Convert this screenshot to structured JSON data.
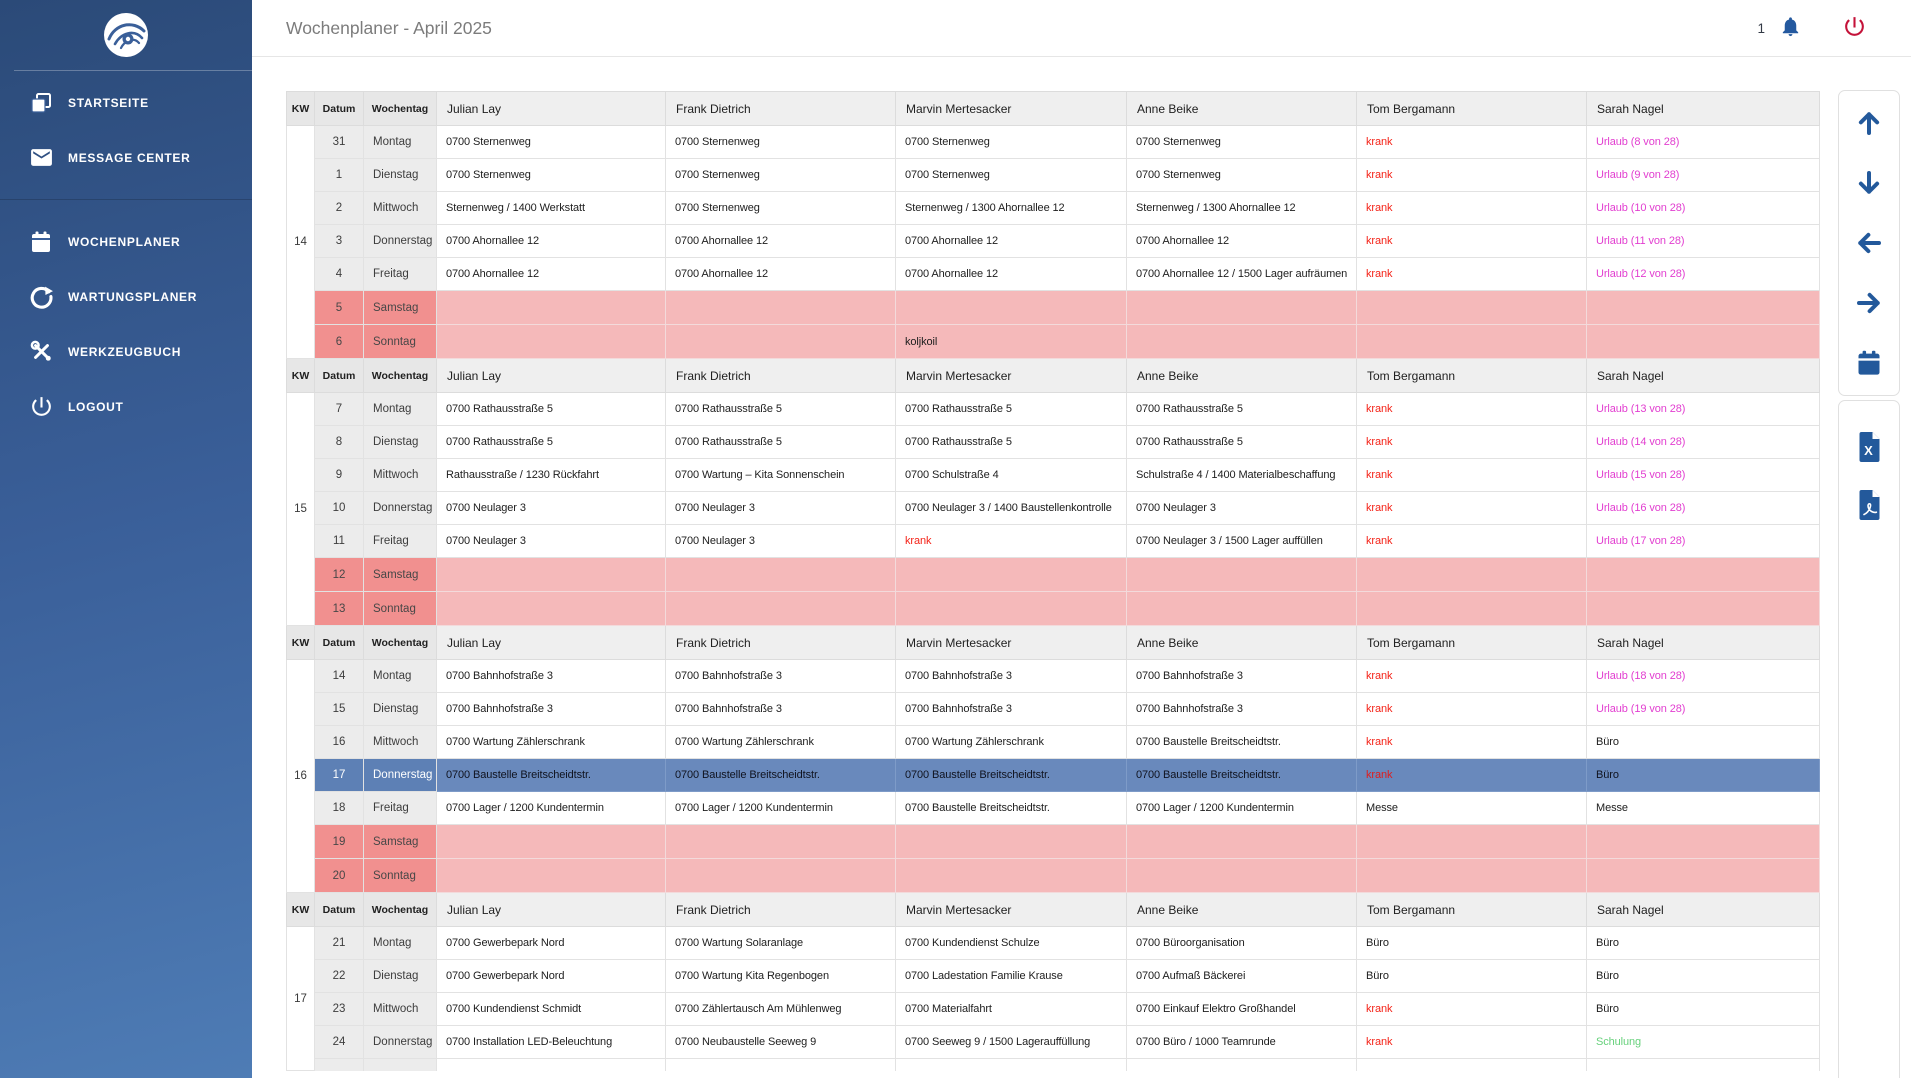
{
  "sidebar": {
    "logo": "swirl-logo",
    "items": [
      {
        "label": "STARTSEITE",
        "icon": "copy-icon"
      },
      {
        "label": "MESSAGE CENTER",
        "icon": "mail-icon"
      },
      {
        "label": "WOCHENPLANER",
        "icon": "calendar-icon"
      },
      {
        "label": "WARTUNGSPLANER",
        "icon": "refresh-icon"
      },
      {
        "label": "WERKZEUGBUCH",
        "icon": "tools-icon"
      },
      {
        "label": "LOGOUT",
        "icon": "power-icon"
      }
    ]
  },
  "header": {
    "title": "Wochenplaner - April 2025",
    "notification_count": "1"
  },
  "toolbar": {
    "buttons": [
      "arrow-up",
      "arrow-down",
      "arrow-left",
      "arrow-right",
      "calendar"
    ],
    "export_buttons": [
      "excel-export",
      "pdf-export"
    ]
  },
  "colors": {
    "sick": "#f42318",
    "vacation": "#e23ed0",
    "training": "#67d17c",
    "weekend_day_cell": "#f1908f",
    "weekend_cell": "#f5b9ba",
    "selected_day_cell": "#5d80b5",
    "selected_cell": "#6989bc",
    "toolbar_blue": "#23599b",
    "logout_red": "#c41239",
    "sidebar_top": "#2b4a78",
    "sidebar_bottom": "#4e7cb5"
  },
  "table": {
    "headers": [
      "KW",
      "Datum",
      "Wochentag",
      "Julian Lay",
      "Frank Dietrich",
      "Marvin Mertesacker",
      "Anne Beike",
      "Tom Bergamann",
      "Sarah Nagel"
    ],
    "weeks": [
      {
        "kw": "14",
        "rows": [
          {
            "date": "31",
            "day": "Montag",
            "cells": [
              "0700 Sternenweg",
              "0700 Sternenweg",
              "0700 Sternenweg",
              "0700 Sternenweg",
              [
                "krank",
                "sick"
              ],
              [
                "Urlaub (8 von 28)",
                "vacation"
              ]
            ]
          },
          {
            "date": "1",
            "day": "Dienstag",
            "cells": [
              "0700 Sternenweg",
              "0700 Sternenweg",
              "0700 Sternenweg",
              "0700 Sternenweg",
              [
                "krank",
                "sick"
              ],
              [
                "Urlaub (9 von 28)",
                "vacation"
              ]
            ]
          },
          {
            "date": "2",
            "day": "Mittwoch",
            "cells": [
              "Sternenweg / 1400 Werkstatt",
              "0700 Sternenweg",
              "Sternenweg / 1300 Ahornallee 12",
              "Sternenweg / 1300 Ahornallee 12",
              [
                "krank",
                "sick"
              ],
              [
                "Urlaub (10 von 28)",
                "vacation"
              ]
            ]
          },
          {
            "date": "3",
            "day": "Donnerstag",
            "cells": [
              "0700 Ahornallee 12",
              "0700 Ahornallee 12",
              "0700 Ahornallee 12",
              "0700 Ahornallee 12",
              [
                "krank",
                "sick"
              ],
              [
                "Urlaub (11 von 28)",
                "vacation"
              ]
            ]
          },
          {
            "date": "4",
            "day": "Freitag",
            "cells": [
              "0700 Ahornallee 12",
              "0700 Ahornallee 12",
              "0700 Ahornallee 12",
              [
                "0700 Ahornallee 12 / 1500 Lager aufräumen",
                "wrap"
              ],
              [
                "krank",
                "sick"
              ],
              [
                "Urlaub (12 von 28)",
                "vacation"
              ]
            ]
          },
          {
            "date": "5",
            "day": "Samstag",
            "weekend": true,
            "cells": [
              "",
              "",
              "",
              "",
              "",
              ""
            ]
          },
          {
            "date": "6",
            "day": "Sonntag",
            "weekend": true,
            "cells": [
              "",
              "",
              "koljkoil",
              "",
              "",
              ""
            ]
          }
        ]
      },
      {
        "kw": "15",
        "rows": [
          {
            "date": "7",
            "day": "Montag",
            "cells": [
              "0700 Rathausstraße 5",
              "0700 Rathausstraße 5",
              "0700 Rathausstraße 5",
              "0700 Rathausstraße 5",
              [
                "krank",
                "sick"
              ],
              [
                "Urlaub (13 von 28)",
                "vacation"
              ]
            ]
          },
          {
            "date": "8",
            "day": "Dienstag",
            "cells": [
              "0700 Rathausstraße 5",
              "0700 Rathausstraße 5",
              "0700 Rathausstraße 5",
              "0700 Rathausstraße 5",
              [
                "krank",
                "sick"
              ],
              [
                "Urlaub (14 von 28)",
                "vacation"
              ]
            ]
          },
          {
            "date": "9",
            "day": "Mittwoch",
            "cells": [
              "Rathausstraße / 1230 Rückfahrt",
              "0700 Wartung – Kita Sonnenschein",
              "0700 Schulstraße 4",
              "Schulstraße 4 / 1400 Materialbeschaffung",
              [
                "krank",
                "sick"
              ],
              [
                "Urlaub (15 von 28)",
                "vacation"
              ]
            ]
          },
          {
            "date": "10",
            "day": "Donnerstag",
            "cells": [
              "0700 Neulager 3",
              "0700 Neulager 3",
              "0700 Neulager 3 / 1400 Baustellenkontrolle",
              "0700 Neulager 3",
              [
                "krank",
                "sick"
              ],
              [
                "Urlaub (16 von 28)",
                "vacation"
              ]
            ]
          },
          {
            "date": "11",
            "day": "Freitag",
            "cells": [
              "0700 Neulager 3",
              "0700 Neulager 3",
              [
                "krank",
                "sick"
              ],
              "0700 Neulager 3 / 1500 Lager auffüllen",
              [
                "krank",
                "sick"
              ],
              [
                "Urlaub (17 von 28)",
                "vacation"
              ]
            ]
          },
          {
            "date": "12",
            "day": "Samstag",
            "weekend": true,
            "cells": [
              "",
              "",
              "",
              "",
              "",
              ""
            ]
          },
          {
            "date": "13",
            "day": "Sonntag",
            "weekend": true,
            "cells": [
              "",
              "",
              "",
              "",
              "",
              ""
            ]
          }
        ]
      },
      {
        "kw": "16",
        "rows": [
          {
            "date": "14",
            "day": "Montag",
            "cells": [
              "0700 Bahnhofstraße 3",
              "0700 Bahnhofstraße 3",
              "0700 Bahnhofstraße 3",
              "0700 Bahnhofstraße 3",
              [
                "krank",
                "sick"
              ],
              [
                "Urlaub (18 von 28)",
                "vacation"
              ]
            ]
          },
          {
            "date": "15",
            "day": "Dienstag",
            "cells": [
              "0700 Bahnhofstraße 3",
              "0700 Bahnhofstraße 3",
              "0700 Bahnhofstraße 3",
              "0700 Bahnhofstraße 3",
              [
                "krank",
                "sick"
              ],
              [
                "Urlaub (19 von 28)",
                "vacation"
              ]
            ]
          },
          {
            "date": "16",
            "day": "Mittwoch",
            "cells": [
              "0700 Wartung Zählerschrank",
              "0700 Wartung Zählerschrank",
              "0700 Wartung Zählerschrank",
              "0700 Baustelle Breitscheidtstr.",
              [
                "krank",
                "sick"
              ],
              "Büro"
            ]
          },
          {
            "date": "17",
            "day": "Donnerstag",
            "selected": true,
            "cells": [
              "0700 Baustelle Breitscheidtstr.",
              "0700 Baustelle Breitscheidtstr.",
              "0700 Baustelle Breitscheidtstr.",
              "0700 Baustelle Breitscheidtstr.",
              [
                "krank",
                "sick"
              ],
              "Büro"
            ]
          },
          {
            "date": "18",
            "day": "Freitag",
            "cells": [
              "0700 Lager / 1200 Kundentermin",
              "0700 Lager / 1200 Kundentermin",
              "0700 Baustelle Breitscheidtstr.",
              "0700 Lager / 1200 Kundentermin",
              "Messe",
              "Messe"
            ]
          },
          {
            "date": "19",
            "day": "Samstag",
            "weekend": true,
            "cells": [
              "",
              "",
              "",
              "",
              "",
              ""
            ]
          },
          {
            "date": "20",
            "day": "Sonntag",
            "weekend": true,
            "cells": [
              "",
              "",
              "",
              "",
              "",
              ""
            ]
          }
        ]
      },
      {
        "kw": "17",
        "rows": [
          {
            "date": "21",
            "day": "Montag",
            "cells": [
              "0700 Gewerbepark Nord",
              "0700 Wartung Solaranlage",
              "0700 Kundendienst Schulze",
              "0700 Büroorganisation",
              "Büro",
              "Büro"
            ]
          },
          {
            "date": "22",
            "day": "Dienstag",
            "cells": [
              "0700 Gewerbepark Nord",
              "0700 Wartung Kita Regenbogen",
              "0700 Ladestation Familie Krause",
              "0700 Aufmaß Bäckerei",
              "Büro",
              "Büro"
            ]
          },
          {
            "date": "23",
            "day": "Mittwoch",
            "cells": [
              "0700 Kundendienst Schmidt",
              "0700 Zählertausch Am Mühlenweg",
              "0700 Materialfahrt",
              "0700 Einkauf Elektro Großhandel",
              [
                "krank",
                "sick"
              ],
              "Büro"
            ]
          },
          {
            "date": "24",
            "day": "Donnerstag",
            "cells": [
              "0700 Installation LED-Beleuchtung",
              "0700 Neubaustelle Seeweg 9",
              "0700 Seeweg 9 / 1500 Lagerauffüllung",
              "0700 Büro / 1000 Teamrunde",
              [
                "krank",
                "sick"
              ],
              [
                "Schulung",
                "training"
              ]
            ]
          },
          {
            "date": "",
            "day": "",
            "partial": true,
            "cells": [
              "",
              "",
              "",
              "",
              "",
              ""
            ]
          }
        ]
      }
    ]
  }
}
